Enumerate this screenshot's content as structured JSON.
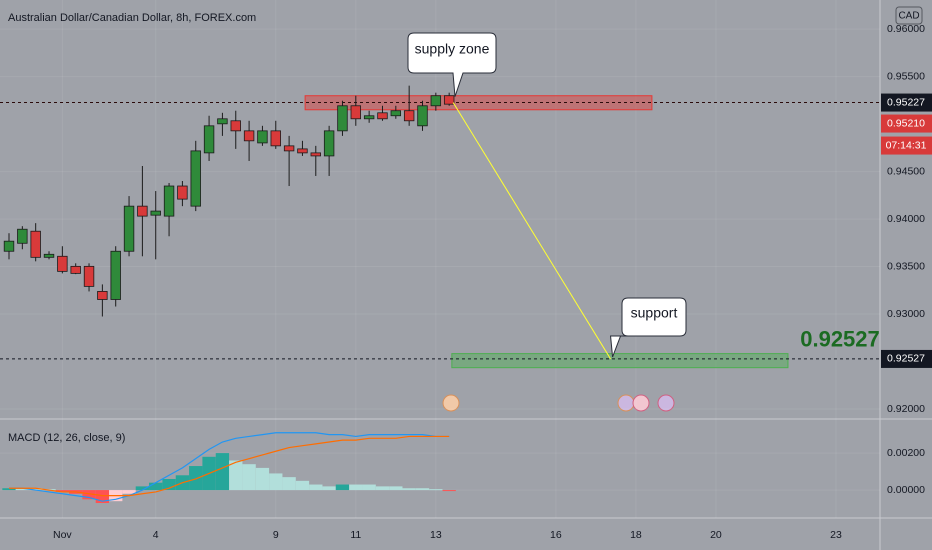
{
  "chart_data": [
    {
      "type": "candlestick",
      "title": "Australian Dollar/Canadian Dollar, 8h, FOREX.com",
      "currency_button": "CAD",
      "x": [
        0,
        1,
        2,
        3,
        4,
        5,
        6,
        7,
        8,
        9,
        10,
        11,
        12,
        13,
        14,
        15,
        16,
        17,
        18,
        19,
        20,
        21,
        22,
        23,
        24,
        25,
        26,
        27,
        28,
        29,
        30,
        31,
        32,
        33
      ],
      "open": [
        0.93661,
        0.93745,
        0.93872,
        0.93597,
        0.93608,
        0.93502,
        0.93502,
        0.93238,
        0.93153,
        0.93661,
        0.94136,
        0.94041,
        0.94031,
        0.94348,
        0.94136,
        0.94697,
        0.95003,
        0.95035,
        0.94929,
        0.94802,
        0.94929,
        0.94771,
        0.94739,
        0.94697,
        0.94665,
        0.94929,
        0.95193,
        0.95056,
        0.95119,
        0.95088,
        0.95141,
        0.94982,
        0.95193,
        0.95299
      ],
      "high": [
        0.93851,
        0.93925,
        0.93957,
        0.93661,
        0.93714,
        0.93534,
        0.93534,
        0.93312,
        0.93714,
        0.94242,
        0.94559,
        0.94295,
        0.9438,
        0.94401,
        0.94824,
        0.95088,
        0.95119,
        0.95141,
        0.95035,
        0.94982,
        0.95035,
        0.94876,
        0.94824,
        0.94771,
        0.94982,
        0.95246,
        0.95299,
        0.95141,
        0.95193,
        0.95193,
        0.95405,
        0.95246,
        0.95331,
        0.95331
      ],
      "low": [
        0.93576,
        0.93682,
        0.93555,
        0.93576,
        0.93428,
        0.9342,
        0.93238,
        0.92974,
        0.93079,
        0.93608,
        0.93608,
        0.93576,
        0.93819,
        0.94136,
        0.94084,
        0.94612,
        0.94876,
        0.94739,
        0.94612,
        0.94771,
        0.94739,
        0.94348,
        0.94665,
        0.94454,
        0.94454,
        0.94876,
        0.94982,
        0.95014,
        0.95035,
        0.95056,
        0.94982,
        0.94929,
        0.95141,
        0.95193
      ],
      "close": [
        0.93767,
        0.93893,
        0.93597,
        0.93629,
        0.93449,
        0.93428,
        0.93291,
        0.93153,
        0.93661,
        0.94136,
        0.94031,
        0.94084,
        0.94348,
        0.9421,
        0.94718,
        0.94982,
        0.95056,
        0.94929,
        0.94824,
        0.94929,
        0.94771,
        0.94718,
        0.94697,
        0.94665,
        0.94929,
        0.95193,
        0.95056,
        0.95088,
        0.95056,
        0.95141,
        0.95035,
        0.95193,
        0.95299,
        0.9521
      ],
      "up_color": "#2f8a3a",
      "down_color": "#d83a3a",
      "xlim": [
        -0.675,
        65.3
      ],
      "xticks": [
        {
          "value": 4,
          "label": "Nov"
        },
        {
          "value": 11,
          "label": "4"
        },
        {
          "value": 20,
          "label": "9"
        },
        {
          "value": 26,
          "label": "11"
        },
        {
          "value": 32,
          "label": "13"
        },
        {
          "value": 41,
          "label": "16"
        },
        {
          "value": 47,
          "label": "18"
        },
        {
          "value": 53,
          "label": "20"
        },
        {
          "value": 62,
          "label": "23"
        }
      ],
      "ylim": [
        0.91905,
        0.96307
      ],
      "yticks": [
        {
          "value": 0.92,
          "label": "0.92000"
        },
        {
          "value": 0.93,
          "label": "0.93000"
        },
        {
          "value": 0.935,
          "label": "0.93500"
        },
        {
          "value": 0.94,
          "label": "0.94000"
        },
        {
          "value": 0.945,
          "label": "0.94500"
        },
        {
          "value": 0.955,
          "label": "0.95500"
        },
        {
          "value": 0.96,
          "label": "0.96000"
        }
      ],
      "grid": true,
      "price_line": 0.95227,
      "last_price": {
        "value": 0.9521,
        "label": "0.95210"
      },
      "countdown": "07:14:31",
      "support_level": 0.92527,
      "zones": [
        {
          "x": [
            22.2,
            48.2
          ],
          "y": [
            0.95151,
            0.95299
          ],
          "color": "#e53935"
        },
        {
          "x": [
            33.2,
            58.4
          ],
          "y": [
            0.92435,
            0.92583
          ],
          "color": "#4caf50"
        }
      ],
      "arrow": {
        "x": [
          33.3,
          45.1
        ],
        "y": [
          0.95227,
          0.92527
        ],
        "color": "#ffff33"
      },
      "annotations": [
        {
          "text": "supply zone"
        },
        {
          "text": "support"
        }
      ]
    },
    {
      "type": "macd",
      "title": "MACD (12, 26, close, 9)",
      "x": [
        0,
        1,
        2,
        3,
        4,
        5,
        6,
        7,
        8,
        9,
        10,
        11,
        12,
        13,
        14,
        15,
        16,
        17,
        18,
        19,
        20,
        21,
        22,
        23,
        24,
        25,
        26,
        27,
        28,
        29,
        30,
        31,
        32,
        33
      ],
      "histogram": [
        0.0001,
        0.0001,
        0.0001,
        5e-05,
        -0.0001,
        -0.0002,
        -0.0005,
        -0.0007,
        -0.0006,
        -0.0002,
        0.0002,
        0.0004,
        0.0006,
        0.0008,
        0.0013,
        0.0018,
        0.002,
        0.0016,
        0.0014,
        0.0012,
        0.0009,
        0.0007,
        0.0005,
        0.0003,
        0.0002,
        0.0003,
        0.0003,
        0.0003,
        0.0002,
        0.0002,
        0.0001,
        0.0001,
        5e-05,
        -5e-05
      ],
      "histogram_colors": [
        "#26a69a",
        "#b2dfdb",
        "#b2dfdb",
        "#b2dfdb",
        "#ff5252",
        "#ff5252",
        "#ff5252",
        "#ff5252",
        "#ffcdd2",
        "#ffcdd2",
        "#26a69a",
        "#26a69a",
        "#26a69a",
        "#26a69a",
        "#26a69a",
        "#26a69a",
        "#26a69a",
        "#b2dfdb",
        "#b2dfdb",
        "#b2dfdb",
        "#b2dfdb",
        "#b2dfdb",
        "#b2dfdb",
        "#b2dfdb",
        "#b2dfdb",
        "#26a69a",
        "#b2dfdb",
        "#b2dfdb",
        "#b2dfdb",
        "#b2dfdb",
        "#b2dfdb",
        "#b2dfdb",
        "#b2dfdb",
        "#ff5252"
      ],
      "series": [
        {
          "color": "#2196f3",
          "values": [
            0.0001,
            0.0001,
            0.0,
            -0.0001,
            -0.0002,
            -0.0003,
            -0.0004,
            -0.0006,
            -0.0005,
            -0.0003,
            0.0,
            0.0004,
            0.0008,
            0.0012,
            0.0017,
            0.0022,
            0.0026,
            0.0028,
            0.0029,
            0.003,
            0.0031,
            0.0031,
            0.0031,
            0.0031,
            0.003,
            0.003,
            0.0029,
            0.003,
            0.003,
            0.003,
            0.003,
            0.003,
            0.0029,
            0.0029
          ]
        },
        {
          "color": "#ff6d00",
          "values": [
            0.0001,
            0.0001,
            0.0001,
            0.0,
            -0.0001,
            -0.0001,
            -0.0002,
            -0.0003,
            -0.0003,
            -0.0003,
            -0.0002,
            -0.0001,
            0.0001,
            0.0004,
            0.0006,
            0.0009,
            0.0012,
            0.0015,
            0.0017,
            0.0019,
            0.0021,
            0.0023,
            0.0024,
            0.0025,
            0.0026,
            0.0027,
            0.0027,
            0.0028,
            0.0028,
            0.0028,
            0.0029,
            0.0029,
            0.0029,
            0.0029
          ]
        }
      ],
      "ylim": [
        -0.00151,
        0.00379
      ],
      "yticks": [
        {
          "value": 0.0,
          "label": "0.00000"
        },
        {
          "value": 0.002,
          "label": "0.00200"
        }
      ]
    }
  ]
}
